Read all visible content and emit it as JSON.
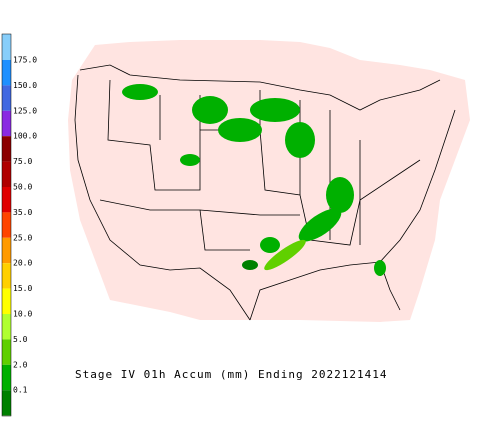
{
  "legend": {
    "items": [
      {
        "label": "175.0",
        "color": "#1e90ff"
      },
      {
        "label": "150.0",
        "color": "#4169e1"
      },
      {
        "label": "125.0",
        "color": "#8a2be2"
      },
      {
        "label": "100.0",
        "color": "#8b0000"
      },
      {
        "label": "75.0",
        "color": "#b00000"
      },
      {
        "label": "50.0",
        "color": "#e00000"
      },
      {
        "label": "35.0",
        "color": "#ff4500"
      },
      {
        "label": "25.0",
        "color": "#ff9a00"
      },
      {
        "label": "20.0",
        "color": "#ffd000"
      },
      {
        "label": "15.0",
        "color": "#ffff00"
      },
      {
        "label": "10.0",
        "color": "#b0ff30"
      },
      {
        "label": "5.0",
        "color": "#60d000"
      },
      {
        "label": "2.0",
        "color": "#00b000"
      },
      {
        "label": "0.1",
        "color": "#008000"
      }
    ],
    "top_color": "#87cefa",
    "bottom_color": "#ffe4e1"
  },
  "caption": "Stage IV 01h Accum (mm) Ending 2022121414"
}
